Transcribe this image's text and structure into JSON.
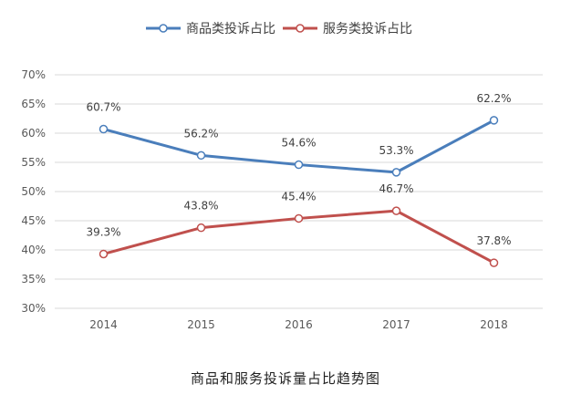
{
  "caption": "商品和服务投诉量占比趋势图",
  "colors": {
    "series1": "#4a7ebb",
    "series2": "#c0504d",
    "grid": "#d9d9d9",
    "text": "#595959"
  },
  "chart_data": {
    "type": "line",
    "title": "",
    "xlabel": "",
    "ylabel": "",
    "categories": [
      "2014",
      "2015",
      "2016",
      "2017",
      "2018"
    ],
    "ylim": [
      30,
      70
    ],
    "yticks": [
      "30%",
      "35%",
      "40%",
      "45%",
      "50%",
      "55%",
      "60%",
      "65%",
      "70%"
    ],
    "grid": true,
    "legend_position": "top-center",
    "series": [
      {
        "name": "商品类投诉占比",
        "values": [
          60.7,
          56.2,
          54.6,
          53.3,
          62.2
        ],
        "labels": [
          "60.7%",
          "56.2%",
          "54.6%",
          "53.3%",
          "62.2%"
        ]
      },
      {
        "name": "服务类投诉占比",
        "values": [
          39.3,
          43.8,
          45.4,
          46.7,
          37.8
        ],
        "labels": [
          "39.3%",
          "43.8%",
          "45.4%",
          "46.7%",
          "37.8%"
        ]
      }
    ]
  }
}
